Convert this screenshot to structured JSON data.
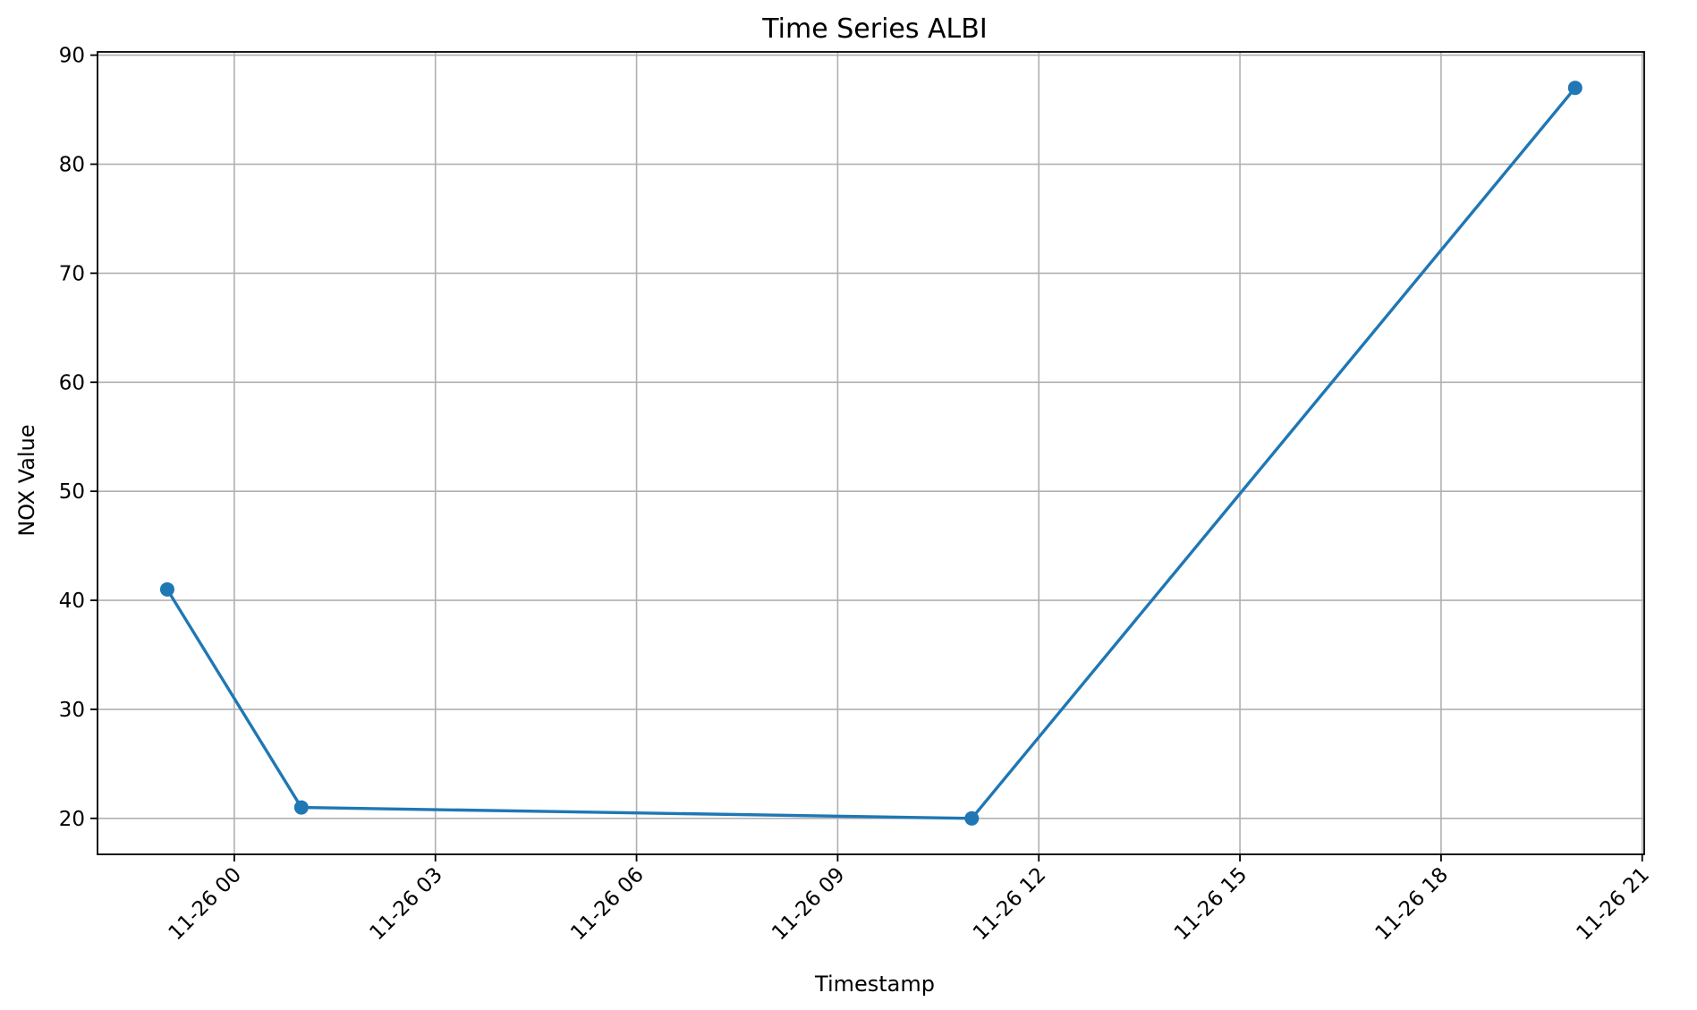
{
  "chart_data": {
    "type": "line",
    "title": "Time Series ALBI",
    "xlabel": "Timestamp",
    "ylabel": "NOX Value",
    "grid": true,
    "x_ticks": [
      {
        "label": "11-26 00",
        "hours": 0
      },
      {
        "label": "11-26 03",
        "hours": 3
      },
      {
        "label": "11-26 06",
        "hours": 6
      },
      {
        "label": "11-26 09",
        "hours": 9
      },
      {
        "label": "11-26 12",
        "hours": 12
      },
      {
        "label": "11-26 15",
        "hours": 15
      },
      {
        "label": "11-26 18",
        "hours": 18
      },
      {
        "label": "11-26 21",
        "hours": 21
      }
    ],
    "y_ticks": [
      20,
      30,
      40,
      50,
      60,
      70,
      80,
      90
    ],
    "xlim_hours": [
      -2.04,
      21.03
    ],
    "ylim": [
      16.7,
      90.3
    ],
    "series": [
      {
        "color": "#1f77b4",
        "marker": "circle",
        "points": [
          {
            "time": "11-25 23:00",
            "hours": -1.0,
            "value": 41
          },
          {
            "time": "11-26 01:00",
            "hours": 1.0,
            "value": 21
          },
          {
            "time": "11-26 11:00",
            "hours": 11.0,
            "value": 20
          },
          {
            "time": "11-26 20:00",
            "hours": 20.0,
            "value": 87
          }
        ]
      }
    ]
  }
}
